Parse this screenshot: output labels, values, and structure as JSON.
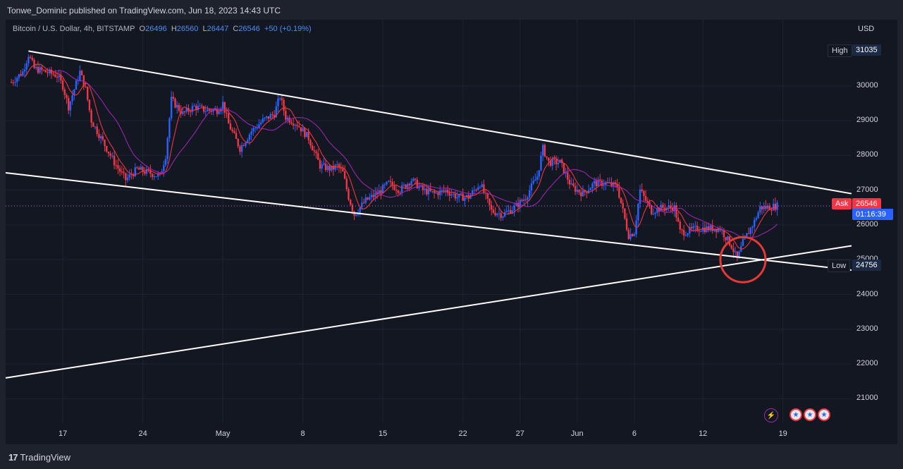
{
  "header": {
    "publisher": "Tonwe_Dominic published on TradingView.com, Jun 18, 2023 14:43 UTC"
  },
  "legend": {
    "symbol": "Bitcoin / U.S. Dollar, 4h, BITSTAMP",
    "o_label": "O",
    "o_value": "26496",
    "h_label": "H",
    "h_value": "26560",
    "l_label": "L",
    "l_value": "26447",
    "c_label": "C",
    "c_value": "26546",
    "change": "+50 (+0.19%)"
  },
  "price_scale": {
    "currency": "USD",
    "high_label": "High",
    "high_value": "31035",
    "low_label": "Low",
    "low_value": "24756",
    "ask_label": "Ask",
    "ask_value": "26546",
    "countdown": "01:16:39"
  },
  "footer": {
    "brand": "TradingView"
  },
  "colors": {
    "up": "#2962ff",
    "down": "#f23645",
    "trendline": "#ffffff",
    "ma_fast": "#f23645",
    "ma_slow": "#9c27b0",
    "circle": "#e53935"
  },
  "chart_data": {
    "type": "candlestick",
    "title": "Bitcoin / U.S. Dollar, 4h, BITSTAMP",
    "ylabel": "USD",
    "ylim": [
      20300,
      31900
    ],
    "y_ticks": [
      21000,
      22000,
      23000,
      24000,
      25000,
      26000,
      27000,
      28000,
      29000,
      30000
    ],
    "x_ticks": [
      {
        "label": "17",
        "date": "2023-04-17"
      },
      {
        "label": "24",
        "date": "2023-04-24"
      },
      {
        "label": "May",
        "date": "2023-05-01"
      },
      {
        "label": "8",
        "date": "2023-05-08"
      },
      {
        "label": "15",
        "date": "2023-05-15"
      },
      {
        "label": "22",
        "date": "2023-05-22"
      },
      {
        "label": "27",
        "date": "2023-05-27"
      },
      {
        "label": "Jun",
        "date": "2023-06-01"
      },
      {
        "label": "6",
        "date": "2023-06-06"
      },
      {
        "label": "12",
        "date": "2023-06-12"
      },
      {
        "label": "19",
        "date": "2023-06-19"
      }
    ],
    "xlim": [
      "2023-04-12",
      "2023-06-25"
    ],
    "high": 31035,
    "low": 24756,
    "last_price": 26546,
    "price_path": [
      [
        "2023-04-12T12:00",
        30100
      ],
      [
        "2023-04-13T12:00",
        30400
      ],
      [
        "2023-04-14T00:00",
        30900
      ],
      [
        "2023-04-14T12:00",
        30500
      ],
      [
        "2023-04-15T12:00",
        30400
      ],
      [
        "2023-04-16T12:00",
        30300
      ],
      [
        "2023-04-17T00:00",
        30000
      ],
      [
        "2023-04-17T12:00",
        29400
      ],
      [
        "2023-04-18T12:00",
        30400
      ],
      [
        "2023-04-19T00:00",
        29900
      ],
      [
        "2023-04-19T12:00",
        29000
      ],
      [
        "2023-04-20T12:00",
        28400
      ],
      [
        "2023-04-21T12:00",
        27800
      ],
      [
        "2023-04-22T12:00",
        27300
      ],
      [
        "2023-04-23T12:00",
        27600
      ],
      [
        "2023-04-24T12:00",
        27500
      ],
      [
        "2023-04-25T12:00",
        27400
      ],
      [
        "2023-04-26T00:00",
        28000
      ],
      [
        "2023-04-26T12:00",
        29600
      ],
      [
        "2023-04-27T12:00",
        29200
      ],
      [
        "2023-04-28T12:00",
        29400
      ],
      [
        "2023-04-29T12:00",
        29300
      ],
      [
        "2023-04-30T12:00",
        29300
      ],
      [
        "2023-05-01T00:00",
        29500
      ],
      [
        "2023-05-01T12:00",
        28900
      ],
      [
        "2023-05-02T12:00",
        28200
      ],
      [
        "2023-05-03T12:00",
        28700
      ],
      [
        "2023-05-04T12:00",
        29000
      ],
      [
        "2023-05-05T12:00",
        29200
      ],
      [
        "2023-05-06T00:00",
        29700
      ],
      [
        "2023-05-06T12:00",
        29100
      ],
      [
        "2023-05-07T12:00",
        28900
      ],
      [
        "2023-05-08T12:00",
        28500
      ],
      [
        "2023-05-09T12:00",
        27700
      ],
      [
        "2023-05-10T12:00",
        27600
      ],
      [
        "2023-05-11T00:00",
        27700
      ],
      [
        "2023-05-11T12:00",
        27500
      ],
      [
        "2023-05-12T00:00",
        26800
      ],
      [
        "2023-05-12T12:00",
        26300
      ],
      [
        "2023-05-13T12:00",
        26700
      ],
      [
        "2023-05-14T12:00",
        26900
      ],
      [
        "2023-05-15T12:00",
        27200
      ],
      [
        "2023-05-16T12:00",
        27000
      ],
      [
        "2023-05-17T12:00",
        27300
      ],
      [
        "2023-05-18T12:00",
        27000
      ],
      [
        "2023-05-19T12:00",
        26900
      ],
      [
        "2023-05-20T12:00",
        27000
      ],
      [
        "2023-05-21T12:00",
        26800
      ],
      [
        "2023-05-22T12:00",
        26800
      ],
      [
        "2023-05-23T12:00",
        27200
      ],
      [
        "2023-05-24T12:00",
        26400
      ],
      [
        "2023-05-25T12:00",
        26300
      ],
      [
        "2023-05-26T12:00",
        26500
      ],
      [
        "2023-05-27T12:00",
        26800
      ],
      [
        "2023-05-28T12:00",
        27400
      ],
      [
        "2023-05-29T00:00",
        28200
      ],
      [
        "2023-05-29T12:00",
        27800
      ],
      [
        "2023-05-30T12:00",
        27800
      ],
      [
        "2023-05-31T12:00",
        27100
      ],
      [
        "2023-06-01T12:00",
        26900
      ],
      [
        "2023-06-02T12:00",
        27200
      ],
      [
        "2023-06-03T12:00",
        27200
      ],
      [
        "2023-06-04T12:00",
        27100
      ],
      [
        "2023-06-05T12:00",
        25700
      ],
      [
        "2023-06-06T00:00",
        25800
      ],
      [
        "2023-06-06T12:00",
        27000
      ],
      [
        "2023-06-07T12:00",
        26400
      ],
      [
        "2023-06-08T12:00",
        26500
      ],
      [
        "2023-06-09T12:00",
        26500
      ],
      [
        "2023-06-10T00:00",
        25800
      ],
      [
        "2023-06-10T12:00",
        25800
      ],
      [
        "2023-06-11T12:00",
        25900
      ],
      [
        "2023-06-12T12:00",
        25900
      ],
      [
        "2023-06-13T12:00",
        25900
      ],
      [
        "2023-06-14T12:00",
        25400
      ],
      [
        "2023-06-15T00:00",
        25000
      ],
      [
        "2023-06-15T12:00",
        25500
      ],
      [
        "2023-06-16T12:00",
        26100
      ],
      [
        "2023-06-17T00:00",
        26500
      ],
      [
        "2023-06-17T12:00",
        26500
      ],
      [
        "2023-06-18T12:00",
        26546
      ]
    ],
    "trendlines": [
      {
        "name": "upper",
        "points": [
          [
            "2023-04-14T00:00",
            31000
          ],
          [
            "2023-06-25T00:00",
            26900
          ]
        ]
      },
      {
        "name": "middle",
        "points": [
          [
            "2023-04-12T00:00",
            27500
          ],
          [
            "2023-06-25T00:00",
            24700
          ]
        ]
      },
      {
        "name": "lower",
        "points": [
          [
            "2023-04-12T00:00",
            21600
          ],
          [
            "2023-06-25T00:00",
            25400
          ]
        ]
      }
    ],
    "annotation": {
      "type": "circle",
      "date": "2023-06-15T12:00",
      "price": 25000
    }
  }
}
